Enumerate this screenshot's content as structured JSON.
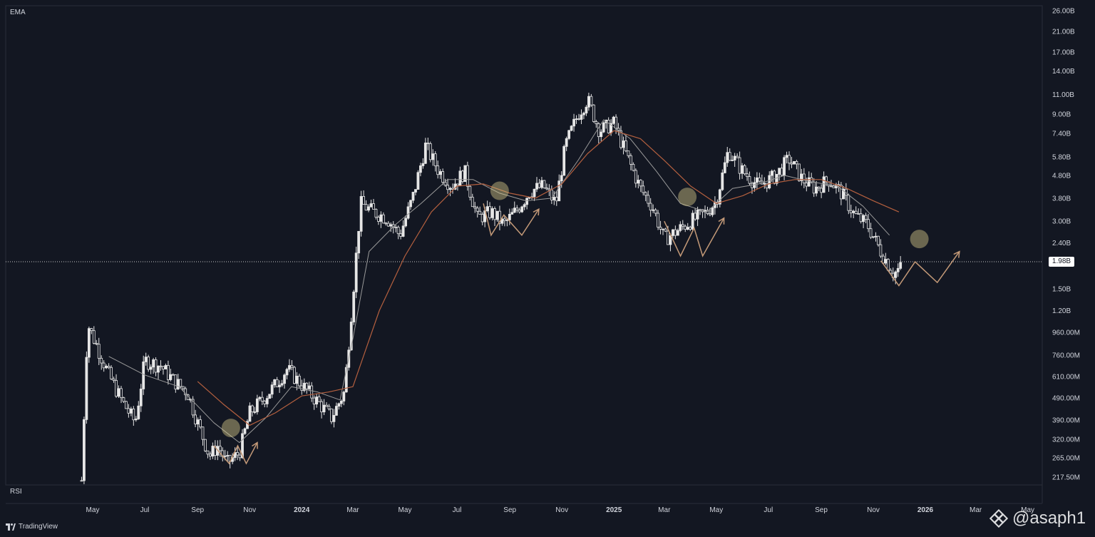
{
  "indicators": {
    "pane_main": "EMA",
    "pane_rsi": "RSI"
  },
  "branding": {
    "platform": "TradingView",
    "watermark": "@asaph1"
  },
  "colors": {
    "background": "#131722",
    "candle": "#e6e6e6",
    "ema_fast": "#9a9a9a",
    "ema_slow": "#b5603f",
    "marker": "#d6c98a",
    "pattern": "#c49a78"
  },
  "chart_data": {
    "type": "candlestick",
    "y_scale": "log",
    "y_unit": "market cap",
    "y_ticks": [
      "26.00B",
      "21.00B",
      "17.00B",
      "14.00B",
      "11.00B",
      "9.00B",
      "7.40B",
      "5.80B",
      "4.80B",
      "3.80B",
      "3.00B",
      "2.40B",
      "1.50B",
      "1.20B",
      "960.00M",
      "760.00M",
      "610.00M",
      "490.00M",
      "390.00M",
      "320.00M",
      "265.00M",
      "217.50M"
    ],
    "y_tick_values": [
      26.0,
      21.0,
      17.0,
      14.0,
      11.0,
      9.0,
      7.4,
      5.8,
      4.8,
      3.8,
      3.0,
      2.4,
      1.5,
      1.2,
      0.96,
      0.76,
      0.61,
      0.49,
      0.39,
      0.32,
      0.265,
      0.2175
    ],
    "x_ticks": [
      "May",
      "Jul",
      "Sep",
      "Nov",
      "2024",
      "Mar",
      "May",
      "Jul",
      "Sep",
      "Nov",
      "2025",
      "Mar",
      "May",
      "Jul",
      "Sep",
      "Nov",
      "2026",
      "Mar",
      "May"
    ],
    "x_tick_dates": [
      "2023-05-01",
      "2023-07-01",
      "2023-09-01",
      "2023-11-01",
      "2024-01-01",
      "2024-03-01",
      "2024-05-01",
      "2024-07-01",
      "2024-09-01",
      "2024-11-01",
      "2025-01-01",
      "2025-03-01",
      "2025-05-01",
      "2025-07-01",
      "2025-09-01",
      "2025-11-01",
      "2026-01-01",
      "2026-03-01",
      "2026-05-01"
    ],
    "current_value": "1.98B",
    "current_value_num": 1.98,
    "series_close": [
      [
        "2023-04-18",
        0.21
      ],
      [
        "2023-04-25",
        1.05
      ],
      [
        "2023-05-05",
        0.85
      ],
      [
        "2023-05-20",
        0.62
      ],
      [
        "2023-06-05",
        0.47
      ],
      [
        "2023-06-20",
        0.38
      ],
      [
        "2023-07-01",
        0.72
      ],
      [
        "2023-07-20",
        0.68
      ],
      [
        "2023-08-05",
        0.58
      ],
      [
        "2023-08-20",
        0.52
      ],
      [
        "2023-09-01",
        0.38
      ],
      [
        "2023-09-15",
        0.27
      ],
      [
        "2023-09-25",
        0.3
      ],
      [
        "2023-10-05",
        0.25
      ],
      [
        "2023-10-20",
        0.28
      ],
      [
        "2023-11-01",
        0.42
      ],
      [
        "2023-11-20",
        0.5
      ],
      [
        "2023-12-01",
        0.56
      ],
      [
        "2023-12-15",
        0.66
      ],
      [
        "2024-01-01",
        0.56
      ],
      [
        "2024-01-20",
        0.47
      ],
      [
        "2024-02-05",
        0.4
      ],
      [
        "2024-02-20",
        0.52
      ],
      [
        "2024-03-01",
        1.4
      ],
      [
        "2024-03-10",
        3.6
      ],
      [
        "2024-03-25",
        3.3
      ],
      [
        "2024-04-10",
        3.1
      ],
      [
        "2024-04-25",
        2.6
      ],
      [
        "2024-05-10",
        3.8
      ],
      [
        "2024-05-25",
        6.5
      ],
      [
        "2024-06-10",
        5.0
      ],
      [
        "2024-06-25",
        4.3
      ],
      [
        "2024-07-10",
        5.0
      ],
      [
        "2024-07-25",
        3.1
      ],
      [
        "2024-08-10",
        3.3
      ],
      [
        "2024-08-25",
        2.9
      ],
      [
        "2024-09-10",
        3.4
      ],
      [
        "2024-09-25",
        4.1
      ],
      [
        "2024-10-10",
        4.3
      ],
      [
        "2024-10-25",
        3.6
      ],
      [
        "2024-11-05",
        6.5
      ],
      [
        "2024-11-20",
        9.0
      ],
      [
        "2024-12-01",
        10.5
      ],
      [
        "2024-12-15",
        7.6
      ],
      [
        "2025-01-01",
        8.2
      ],
      [
        "2025-01-15",
        6.0
      ],
      [
        "2025-02-01",
        4.2
      ],
      [
        "2025-02-15",
        3.5
      ],
      [
        "2025-03-01",
        2.5
      ],
      [
        "2025-03-15",
        2.7
      ],
      [
        "2025-04-01",
        3.0
      ],
      [
        "2025-04-20",
        3.3
      ],
      [
        "2025-05-01",
        3.7
      ],
      [
        "2025-05-15",
        6.2
      ],
      [
        "2025-06-01",
        5.0
      ],
      [
        "2025-06-20",
        4.3
      ],
      [
        "2025-07-10",
        4.8
      ],
      [
        "2025-07-25",
        5.7
      ],
      [
        "2025-08-10",
        4.6
      ],
      [
        "2025-08-25",
        4.2
      ],
      [
        "2025-09-10",
        4.6
      ],
      [
        "2025-09-25",
        4.0
      ],
      [
        "2025-10-10",
        3.2
      ],
      [
        "2025-10-25",
        2.9
      ],
      [
        "2025-11-10",
        2.2
      ],
      [
        "2025-11-25",
        1.75
      ],
      [
        "2025-12-05",
        1.9
      ]
    ],
    "ema_fast_close": [
      [
        "2023-05-20",
        0.75
      ],
      [
        "2023-07-01",
        0.62
      ],
      [
        "2023-08-10",
        0.55
      ],
      [
        "2023-09-20",
        0.38
      ],
      [
        "2023-10-20",
        0.31
      ],
      [
        "2023-11-20",
        0.4
      ],
      [
        "2023-12-20",
        0.55
      ],
      [
        "2024-01-20",
        0.52
      ],
      [
        "2024-02-15",
        0.48
      ],
      [
        "2024-03-01",
        0.9
      ],
      [
        "2024-03-20",
        2.2
      ],
      [
        "2024-04-20",
        2.9
      ],
      [
        "2024-05-20",
        3.6
      ],
      [
        "2024-06-20",
        4.6
      ],
      [
        "2024-07-20",
        4.6
      ],
      [
        "2024-08-20",
        4.0
      ],
      [
        "2024-09-20",
        3.7
      ],
      [
        "2024-10-20",
        3.8
      ],
      [
        "2024-11-20",
        5.6
      ],
      [
        "2024-12-20",
        8.5
      ],
      [
        "2025-01-20",
        7.0
      ],
      [
        "2025-02-20",
        5.0
      ],
      [
        "2025-03-20",
        3.6
      ],
      [
        "2025-04-20",
        3.3
      ],
      [
        "2025-05-20",
        4.2
      ],
      [
        "2025-06-20",
        4.4
      ],
      [
        "2025-07-20",
        4.8
      ],
      [
        "2025-08-20",
        4.5
      ],
      [
        "2025-09-20",
        4.3
      ],
      [
        "2025-10-20",
        3.5
      ],
      [
        "2025-11-20",
        2.6
      ]
    ],
    "ema_slow_close": [
      [
        "2023-09-01",
        0.58
      ],
      [
        "2023-10-01",
        0.46
      ],
      [
        "2023-11-01",
        0.37
      ],
      [
        "2023-12-01",
        0.42
      ],
      [
        "2024-01-01",
        0.5
      ],
      [
        "2024-02-01",
        0.52
      ],
      [
        "2024-03-01",
        0.55
      ],
      [
        "2024-04-01",
        1.2
      ],
      [
        "2024-05-01",
        2.1
      ],
      [
        "2024-06-01",
        3.3
      ],
      [
        "2024-07-01",
        4.3
      ],
      [
        "2024-08-01",
        4.4
      ],
      [
        "2024-09-01",
        4.0
      ],
      [
        "2024-10-01",
        3.8
      ],
      [
        "2024-11-01",
        4.4
      ],
      [
        "2024-12-01",
        6.0
      ],
      [
        "2025-01-01",
        7.6
      ],
      [
        "2025-02-01",
        7.0
      ],
      [
        "2025-03-01",
        5.6
      ],
      [
        "2025-04-01",
        4.3
      ],
      [
        "2025-05-01",
        3.6
      ],
      [
        "2025-06-01",
        3.9
      ],
      [
        "2025-07-01",
        4.4
      ],
      [
        "2025-08-01",
        4.6
      ],
      [
        "2025-09-01",
        4.6
      ],
      [
        "2025-10-01",
        4.2
      ],
      [
        "2025-11-01",
        3.7
      ],
      [
        "2025-12-01",
        3.3
      ]
    ],
    "markers": [
      [
        "2023-10-10",
        0.36
      ],
      [
        "2024-08-20",
        4.1
      ],
      [
        "2025-03-28",
        3.85
      ],
      [
        "2025-12-25",
        2.5
      ]
    ],
    "patterns": [
      [
        [
          "2023-09-20",
          0.3
        ],
        [
          "2023-10-08",
          0.25
        ],
        [
          "2023-10-18",
          0.3
        ],
        [
          "2023-10-28",
          0.25
        ],
        [
          "2023-11-10",
          0.31
        ]
      ],
      [
        [
          "2024-08-01",
          3.6
        ],
        [
          "2024-08-10",
          2.6
        ],
        [
          "2024-08-25",
          3.2
        ],
        [
          "2024-09-15",
          2.6
        ],
        [
          "2024-10-05",
          3.4
        ]
      ],
      [
        [
          "2025-03-01",
          3.0
        ],
        [
          "2025-03-20",
          2.1
        ],
        [
          "2025-04-05",
          2.8
        ],
        [
          "2025-04-15",
          2.1
        ],
        [
          "2025-05-10",
          3.1
        ]
      ],
      [
        [
          "2025-11-10",
          2.0
        ],
        [
          "2025-12-01",
          1.55
        ],
        [
          "2025-12-20",
          1.98
        ],
        [
          "2026-01-15",
          1.6
        ],
        [
          "2026-02-10",
          2.2
        ]
      ]
    ]
  }
}
